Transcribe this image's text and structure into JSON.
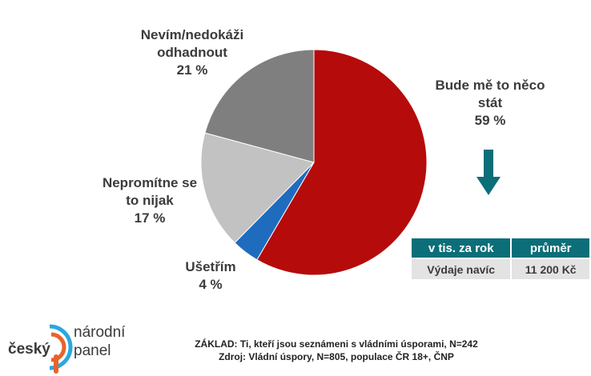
{
  "chart_data": {
    "type": "pie",
    "slices": [
      {
        "label_lines": [
          "Bude mě to něco",
          "stát"
        ],
        "value": 59,
        "value_label": "59 %",
        "color": "#b50b0b"
      },
      {
        "label_lines": [
          "Ušetřím"
        ],
        "value": 4,
        "value_label": "4 %",
        "color": "#1f6cbf"
      },
      {
        "label_lines": [
          "Nepromítne se",
          "to nijak"
        ],
        "value": 17,
        "value_label": "17 %",
        "color": "#c2c2c2"
      },
      {
        "label_lines": [
          "Nevím/nedokáži",
          "odhadnout"
        ],
        "value": 21,
        "value_label": "21 %",
        "color": "#7f7f7f"
      }
    ],
    "start": "12 o'clock, clockwise"
  },
  "arrow_color": "#0b6e78",
  "table": {
    "headers": [
      "v tis. za rok",
      "průměr"
    ],
    "rows": [
      [
        "Výdaje navíc",
        "11 200 Kč"
      ]
    ]
  },
  "footer": {
    "line1": "ZÁKLAD: Ti, kteří jsou seznámeni s vládními úsporami, N=242",
    "line2": "Zdroj: Vládní úspory, N=805, populace ČR 18+, ČNP"
  },
  "logo": {
    "word1": "český",
    "word2": "národní",
    "word3": "panel",
    "colors": [
      "#e8632b",
      "#2aa7df"
    ]
  }
}
